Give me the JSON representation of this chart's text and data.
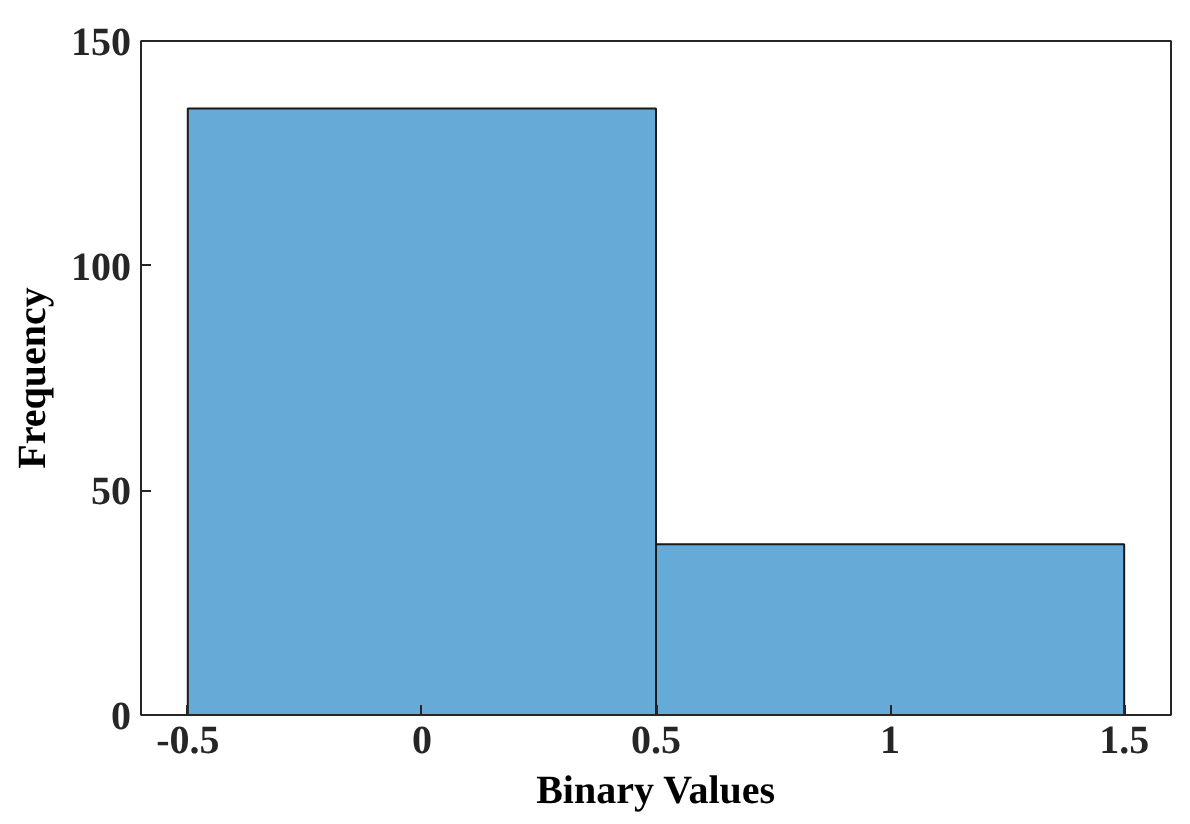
{
  "chart_data": {
    "type": "histogram",
    "xlabel": "Binary Values",
    "ylabel": "Frequency",
    "bins": [
      -0.5,
      0.5,
      1.5
    ],
    "values": [
      135,
      38
    ],
    "color": "#66aad7",
    "xlim": [
      -0.6,
      1.6
    ],
    "ylim": [
      0,
      150
    ],
    "xticks": [
      -0.5,
      0,
      0.5,
      1,
      1.5
    ],
    "yticks": [
      0,
      50,
      100,
      150
    ],
    "grid": false
  }
}
